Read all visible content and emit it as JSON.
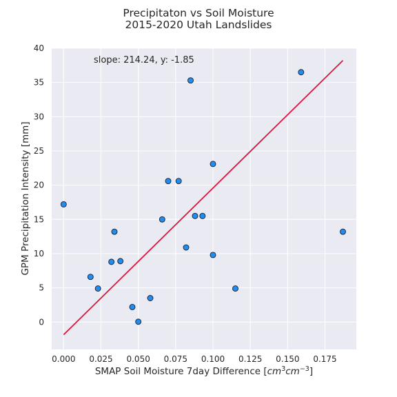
{
  "chart_data": {
    "type": "scatter",
    "title_lines": [
      "Precipitaton vs Soil Moisture",
      "2015-2020 Utah Landslides"
    ],
    "xlabel_text": "SMAP Soil Moisture 7day Difference [",
    "xlabel_unit": {
      "base1": "cm",
      "exp1": "3",
      "base2": "cm",
      "exp2": "−3",
      "close": "]"
    },
    "ylabel": "GPM Precipitation Intensity [mm]",
    "annotation": "slope: 214.24, y: -1.85",
    "xlim": [
      -0.008,
      0.196
    ],
    "ylim": [
      -4,
      40
    ],
    "xticks": [
      0.0,
      0.025,
      0.05,
      0.075,
      0.1,
      0.125,
      0.15,
      0.175
    ],
    "xtick_labels": [
      "0.000",
      "0.025",
      "0.050",
      "0.075",
      "0.100",
      "0.125",
      "0.150",
      "0.175"
    ],
    "yticks": [
      0,
      5,
      10,
      15,
      20,
      25,
      30,
      35,
      40
    ],
    "ytick_labels": [
      "0",
      "5",
      "10",
      "15",
      "20",
      "25",
      "30",
      "35",
      "40"
    ],
    "grid": true,
    "points": [
      {
        "x": 0.0,
        "y": 17.2
      },
      {
        "x": 0.018,
        "y": 6.6
      },
      {
        "x": 0.023,
        "y": 4.9
      },
      {
        "x": 0.032,
        "y": 8.8
      },
      {
        "x": 0.034,
        "y": 13.2
      },
      {
        "x": 0.038,
        "y": 8.9
      },
      {
        "x": 0.046,
        "y": 2.2
      },
      {
        "x": 0.05,
        "y": 0.05
      },
      {
        "x": 0.058,
        "y": 3.5
      },
      {
        "x": 0.066,
        "y": 15.0
      },
      {
        "x": 0.07,
        "y": 20.6
      },
      {
        "x": 0.077,
        "y": 20.6
      },
      {
        "x": 0.082,
        "y": 10.9
      },
      {
        "x": 0.085,
        "y": 35.3
      },
      {
        "x": 0.088,
        "y": 15.5
      },
      {
        "x": 0.093,
        "y": 15.5
      },
      {
        "x": 0.1,
        "y": 23.1
      },
      {
        "x": 0.1,
        "y": 9.8
      },
      {
        "x": 0.115,
        "y": 4.9
      },
      {
        "x": 0.159,
        "y": 36.5
      },
      {
        "x": 0.187,
        "y": 13.2
      }
    ],
    "fit_line": {
      "slope": 214.24,
      "intercept": -1.85,
      "x_range": [
        0.0,
        0.187
      ]
    },
    "colors": {
      "background": "#eaeaf2",
      "grid": "#ffffff",
      "point_fill": "#1f8ef0",
      "point_edge": "#1a1a2e",
      "fit_line": "#dc143c"
    }
  }
}
